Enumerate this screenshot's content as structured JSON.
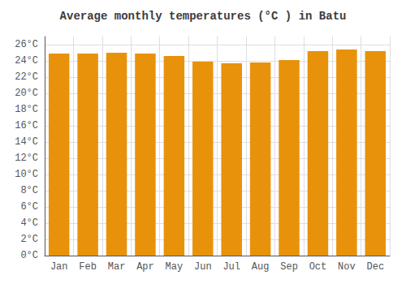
{
  "chart_data": {
    "type": "bar",
    "title": "Average monthly temperatures (°C ) in Batu",
    "categories": [
      "Jan",
      "Feb",
      "Mar",
      "Apr",
      "May",
      "Jun",
      "Jul",
      "Aug",
      "Sep",
      "Oct",
      "Nov",
      "Dec"
    ],
    "values": [
      24.9,
      24.9,
      25.0,
      24.9,
      24.6,
      23.9,
      23.7,
      23.8,
      24.1,
      25.2,
      25.4,
      25.2
    ],
    "color": "#E8920C",
    "ylim": [
      0,
      27
    ],
    "yticks": [
      {
        "value": 0,
        "label": "0°C"
      },
      {
        "value": 2,
        "label": "2°C"
      },
      {
        "value": 4,
        "label": "4°C"
      },
      {
        "value": 6,
        "label": "6°C"
      },
      {
        "value": 8,
        "label": "8°C"
      },
      {
        "value": 10,
        "label": "10°C"
      },
      {
        "value": 12,
        "label": "12°C"
      },
      {
        "value": 14,
        "label": "14°C"
      },
      {
        "value": 16,
        "label": "16°C"
      },
      {
        "value": 18,
        "label": "18°C"
      },
      {
        "value": 20,
        "label": "20°C"
      },
      {
        "value": 22,
        "label": "22°C"
      },
      {
        "value": 24,
        "label": "24°C"
      },
      {
        "value": 26,
        "label": "26°C"
      }
    ],
    "grid": true
  }
}
